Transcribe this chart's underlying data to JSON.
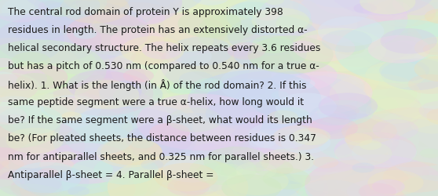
{
  "lines": [
    "The central rod domain of protein Y is approximately 398",
    "residues in length. The protein has an extensively distorted α-",
    "helical secondary structure. The helix repeats every 3.6 residues",
    "but has a pitch of 0.530 nm (compared to 0.540 nm for a true α-",
    "helix). 1. What is the length (in Å) of the rod domain? 2. If this",
    "same peptide segment were a true α-helix, how long would it",
    "be? If the same segment were a β-sheet, what would its length",
    "be? (For pleated sheets, the distance between residues is 0.347",
    "nm for antiparallel sheets, and 0.325 nm for parallel sheets.) 3.",
    "Antiparallel β-sheet = 4. Parallel β-sheet ="
  ],
  "text_color": "#1a1a1a",
  "font_size": 8.8,
  "fig_width": 5.58,
  "fig_height": 2.51,
  "dpi": 100,
  "bg_base": "#d8ecd8",
  "bubble_colors": [
    "#c8e8f0",
    "#d0f0c8",
    "#f0e8c0",
    "#e8d0f0",
    "#c8f0e0",
    "#f0d8c8",
    "#d8e8f8",
    "#e8f0c8",
    "#f8d8e8",
    "#d0e8c0",
    "#f0c8d8",
    "#c8d8f0",
    "#e0f0d0",
    "#f0e0b8",
    "#d8c8f0"
  ]
}
